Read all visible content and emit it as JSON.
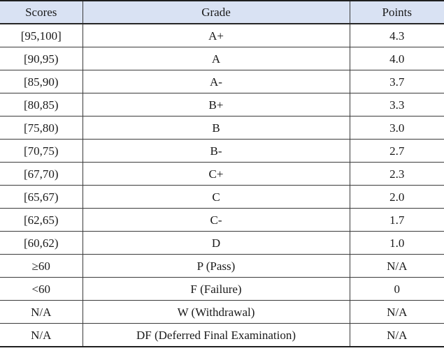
{
  "table": {
    "columns": [
      "Scores",
      "Grade",
      "Points"
    ],
    "rows": [
      [
        "[95,100]",
        "A+",
        "4.3"
      ],
      [
        "[90,95)",
        "A",
        "4.0"
      ],
      [
        "[85,90)",
        "A-",
        "3.7"
      ],
      [
        "[80,85)",
        "B+",
        "3.3"
      ],
      [
        "[75,80)",
        "B",
        "3.0"
      ],
      [
        "[70,75)",
        "B-",
        "2.7"
      ],
      [
        "[67,70)",
        "C+",
        "2.3"
      ],
      [
        "[65,67)",
        "C",
        "2.0"
      ],
      [
        "[62,65)",
        "C-",
        "1.7"
      ],
      [
        "[60,62)",
        "D",
        "1.0"
      ],
      [
        "≥60",
        "P (Pass)",
        "N/A"
      ],
      [
        "<60",
        "F (Failure)",
        "0"
      ],
      [
        "N/A",
        "W (Withdrawal)",
        "N/A"
      ],
      [
        "N/A",
        "DF (Deferred Final Examination)",
        "N/A"
      ]
    ],
    "colors": {
      "header_background": "#d9e2f3",
      "text": "#1a1a1a",
      "inner_rule": "#3a3a3a",
      "outer_rule": "#1f1f1f"
    }
  }
}
